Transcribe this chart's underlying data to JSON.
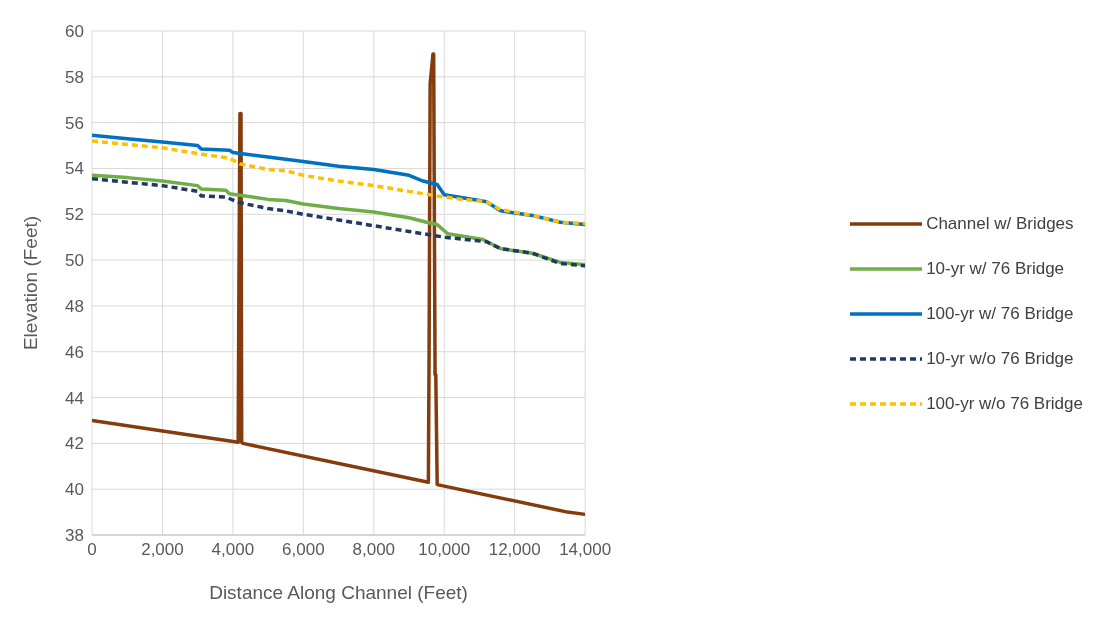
{
  "chart_data": {
    "type": "line",
    "xlabel": "Distance Along Channel (Feet)",
    "ylabel": "Elevation (Feet)",
    "xlim": [
      0,
      14000
    ],
    "ylim": [
      38,
      60
    ],
    "xticks": [
      0,
      {
        "value": 2000,
        "label": "2,000"
      },
      {
        "value": 4000,
        "label": "4,000"
      },
      {
        "value": 6000,
        "label": "6,000"
      },
      {
        "value": 8000,
        "label": "8,000"
      },
      {
        "value": 10000,
        "label": "10,000"
      },
      {
        "value": 12000,
        "label": "12,000"
      },
      {
        "value": 14000,
        "label": "14,000"
      }
    ],
    "yticks": [
      38,
      40,
      42,
      44,
      46,
      48,
      50,
      52,
      54,
      56,
      58,
      60
    ],
    "grid": true,
    "legend": "right",
    "marker": "none",
    "series": [
      {
        "name": "Channel w/ Bridges",
        "color": "#843c0c",
        "line_style": "solid",
        "x": [
          0,
          4150,
          4170,
          4200,
          4230,
          4250,
          4280,
          9550,
          9570,
          9600,
          9680,
          9700,
          9740,
          9760,
          9800,
          13500,
          14000
        ],
        "values": [
          43,
          42.05,
          48.6,
          56.4,
          56.4,
          42.05,
          42.0,
          40.3,
          46,
          57.7,
          59,
          59,
          45,
          45,
          40.2,
          39,
          38.9
        ]
      },
      {
        "name": "10-yr w/ 76 Bridge",
        "color": "#70ad47",
        "line_style": "solid",
        "x": [
          0,
          1000,
          2000,
          3000,
          3100,
          3800,
          3900,
          5000,
          5500,
          6000,
          7000,
          8000,
          9000,
          9500,
          9800,
          10100,
          11100,
          11600,
          12500,
          13300,
          14000
        ],
        "values": [
          53.7,
          53.6,
          53.45,
          53.25,
          53.1,
          53.05,
          52.9,
          52.65,
          52.6,
          52.45,
          52.25,
          52.1,
          51.85,
          51.65,
          51.55,
          51.15,
          50.9,
          50.5,
          50.3,
          49.9,
          49.8
        ]
      },
      {
        "name": "100-yr w/ 76 Bridge",
        "color": "#0070c0",
        "line_style": "solid",
        "x": [
          0,
          1000,
          2000,
          3000,
          3100,
          3900,
          4000,
          5000,
          6000,
          7000,
          8000,
          9000,
          9400,
          9800,
          10000,
          11000,
          11200,
          11600,
          12500,
          13300,
          14000
        ],
        "values": [
          55.45,
          55.3,
          55.15,
          55.0,
          54.85,
          54.8,
          54.7,
          54.5,
          54.3,
          54.1,
          53.95,
          53.7,
          53.45,
          53.3,
          52.85,
          52.6,
          52.55,
          52.15,
          51.95,
          51.65,
          51.55
        ]
      },
      {
        "name": "10-yr w/o 76 Bridge",
        "color": "#203864",
        "line_style": "dashed",
        "x": [
          0,
          1000,
          2000,
          3000,
          3100,
          3800,
          4200,
          5000,
          5500,
          6000,
          7000,
          8000,
          9000,
          10000,
          11200,
          11600,
          12500,
          13300,
          14000
        ],
        "values": [
          53.55,
          53.4,
          53.25,
          53.0,
          52.8,
          52.75,
          52.5,
          52.25,
          52.15,
          52.0,
          51.75,
          51.5,
          51.25,
          51.0,
          50.8,
          50.5,
          50.3,
          49.85,
          49.75
        ]
      },
      {
        "name": "100-yr w/o 76 Bridge",
        "color": "#ffc000",
        "line_style": "dashed",
        "x": [
          0,
          2000,
          3000,
          3900,
          4200,
          5000,
          5500,
          6000,
          7000,
          8000,
          9000,
          9800,
          10500,
          11200,
          11600,
          12500,
          13300,
          14000
        ],
        "values": [
          55.2,
          54.9,
          54.65,
          54.45,
          54.2,
          53.95,
          53.9,
          53.7,
          53.45,
          53.25,
          53.0,
          52.8,
          52.65,
          52.55,
          52.2,
          51.95,
          51.65,
          51.6
        ]
      }
    ]
  }
}
